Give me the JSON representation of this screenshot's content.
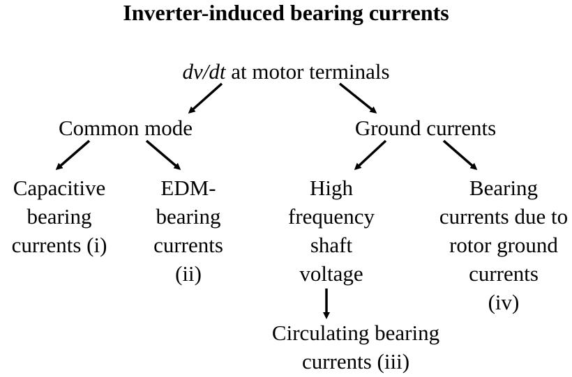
{
  "title": "Inverter-induced bearing currents",
  "root": {
    "italic_part": "dv/dt",
    "rest": " at motor terminals"
  },
  "level1": {
    "common_mode": "Common mode",
    "ground_currents": "Ground currents"
  },
  "leaves": {
    "capacitive": [
      "Capacitive",
      "bearing",
      "currents (i)"
    ],
    "edm": [
      "EDM-",
      "bearing",
      "currents",
      "(ii)"
    ],
    "high_frequency": [
      "High",
      "frequency",
      "shaft",
      "voltage"
    ],
    "rotor_ground": [
      "Bearing",
      "currents due to",
      "rotor ground",
      "currents",
      "(iv)"
    ],
    "circulating": [
      "Circulating bearing",
      "currents (iii)"
    ]
  },
  "colors": {
    "text": "#000000",
    "arrows": "#000000",
    "background": "#ffffff"
  }
}
